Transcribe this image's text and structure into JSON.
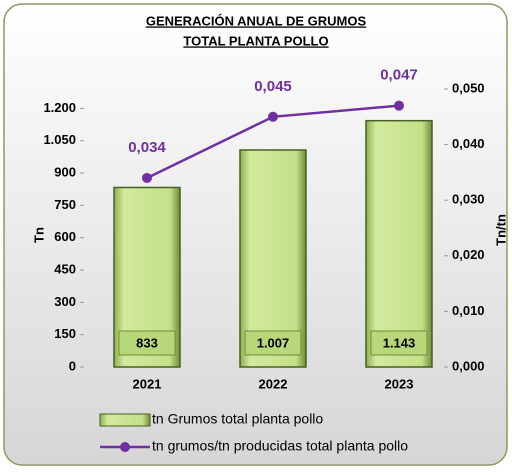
{
  "chart_data": {
    "type": "combo",
    "title": [
      "GENERACIÓN ANUAL DE GRUMOS",
      "TOTAL PLANTA POLLO"
    ],
    "categories": [
      "2021",
      "2022",
      "2023"
    ],
    "ylabel": "Tn",
    "y2label": "Tn/tn",
    "ylim": [
      0,
      1290
    ],
    "yticks": [
      0,
      150,
      300,
      450,
      600,
      750,
      900,
      {
        "value": 1050,
        "label": "1.050"
      },
      {
        "value": 1200,
        "label": "1.200"
      }
    ],
    "y2lim": [
      0,
      0.05
    ],
    "y2ticks": [
      {
        "value": 0,
        "label": "0,000"
      },
      {
        "value": 0.01,
        "label": "0,010"
      },
      {
        "value": 0.02,
        "label": "0,020"
      },
      {
        "value": 0.03,
        "label": "0,030"
      },
      {
        "value": 0.04,
        "label": "0,040"
      },
      {
        "value": 0.05,
        "label": "0,050"
      }
    ],
    "series": [
      {
        "name": "tn Grumos total planta pollo",
        "type": "bar",
        "color": "#b7d77a",
        "values": [
          833,
          1007,
          1143
        ],
        "value_labels": [
          "833",
          "1.007",
          "1.143"
        ]
      },
      {
        "name": "tn grumos/tn producidas total planta pollo",
        "type": "line",
        "axis": "y2",
        "color": "#7030a0",
        "values": [
          0.034,
          0.045,
          0.047
        ],
        "value_labels": [
          "0,034",
          "0,045",
          "0,047"
        ]
      }
    ]
  }
}
